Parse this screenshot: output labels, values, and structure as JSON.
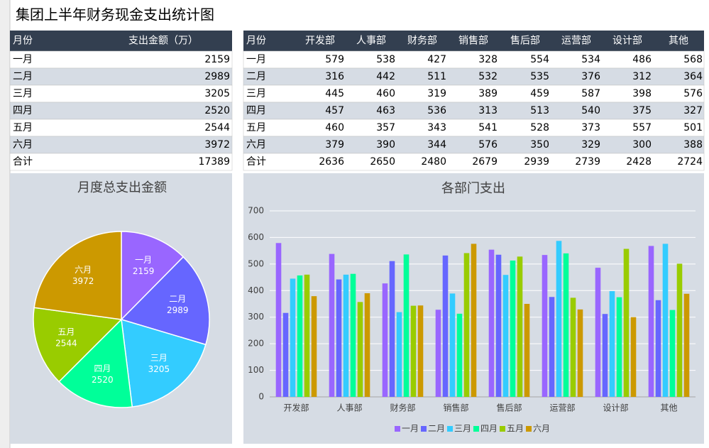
{
  "title": "集团上半年财务现金支出统计图",
  "summary_table": {
    "columns": [
      "月份",
      "支出金额（万）"
    ],
    "rows": [
      [
        "一月",
        2159
      ],
      [
        "二月",
        2989
      ],
      [
        "三月",
        3205
      ],
      [
        "四月",
        2520
      ],
      [
        "五月",
        2544
      ],
      [
        "六月",
        3972
      ],
      [
        "合计",
        17389
      ]
    ]
  },
  "dept_table": {
    "columns": [
      "月份",
      "开发部",
      "人事部",
      "财务部",
      "销售部",
      "售后部",
      "运营部",
      "设计部",
      "其他"
    ],
    "rows": [
      [
        "一月",
        579,
        538,
        427,
        328,
        554,
        534,
        486,
        568
      ],
      [
        "二月",
        316,
        442,
        511,
        532,
        535,
        376,
        312,
        364
      ],
      [
        "三月",
        445,
        460,
        319,
        389,
        459,
        587,
        398,
        576
      ],
      [
        "四月",
        457,
        463,
        536,
        313,
        513,
        540,
        375,
        327
      ],
      [
        "五月",
        460,
        357,
        343,
        541,
        528,
        373,
        557,
        501
      ],
      [
        "六月",
        379,
        390,
        344,
        576,
        350,
        329,
        300,
        388
      ],
      [
        "合计",
        2636,
        2650,
        2480,
        2679,
        2939,
        2739,
        2428,
        2724
      ]
    ]
  },
  "chart_data": [
    {
      "type": "pie",
      "title": "月度总支出金额",
      "categories": [
        "一月",
        "二月",
        "三月",
        "四月",
        "五月",
        "六月"
      ],
      "values": [
        2159,
        2989,
        3205,
        2520,
        2544,
        3972
      ],
      "colors": [
        "#9966ff",
        "#6666ff",
        "#33ccff",
        "#00ff99",
        "#99cc00",
        "#cc9900"
      ]
    },
    {
      "type": "bar",
      "title": "各部门支出",
      "categories": [
        "开发部",
        "人事部",
        "财务部",
        "销售部",
        "售后部",
        "运营部",
        "设计部",
        "其他"
      ],
      "series": [
        {
          "name": "一月",
          "color": "#9966ff",
          "values": [
            579,
            538,
            427,
            328,
            554,
            534,
            486,
            568
          ]
        },
        {
          "name": "二月",
          "color": "#6666ff",
          "values": [
            316,
            442,
            511,
            532,
            535,
            376,
            312,
            364
          ]
        },
        {
          "name": "三月",
          "color": "#33ccff",
          "values": [
            445,
            460,
            319,
            389,
            459,
            587,
            398,
            576
          ]
        },
        {
          "name": "四月",
          "color": "#00ff99",
          "values": [
            457,
            463,
            536,
            313,
            513,
            540,
            375,
            327
          ]
        },
        {
          "name": "五月",
          "color": "#99cc00",
          "values": [
            460,
            357,
            343,
            541,
            528,
            373,
            557,
            501
          ]
        },
        {
          "name": "六月",
          "color": "#cc9900",
          "values": [
            379,
            390,
            344,
            576,
            350,
            329,
            300,
            388
          ]
        }
      ],
      "ylim": [
        0,
        700
      ],
      "yticks": [
        0,
        100,
        200,
        300,
        400,
        500,
        600,
        700
      ],
      "grid": true,
      "legend": "bottom"
    }
  ]
}
